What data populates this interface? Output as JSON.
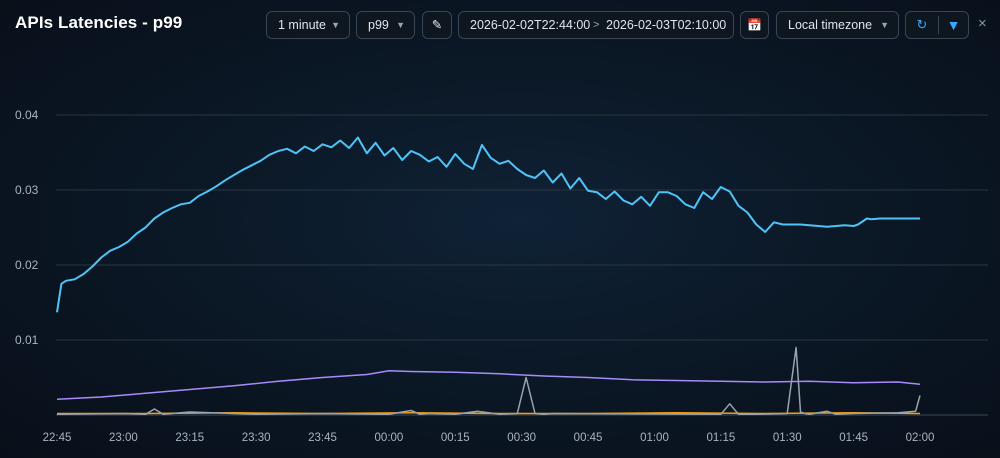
{
  "panel": {
    "title": "APIs Latencies - p99"
  },
  "toolbar": {
    "interval": {
      "value": "1 minute",
      "caret": "▼"
    },
    "stat": {
      "value": "p99",
      "caret": "▼"
    },
    "edit_icon_glyph": "✎",
    "range": {
      "from": "2026-02-02T22:44:00",
      "separator": ">",
      "to": "2026-02-03T02:10:00"
    },
    "calendar_icon_glyph": "📅",
    "timezone": {
      "value": "Local timezone",
      "caret": "▼"
    },
    "refresh_icon_glyph": "↻",
    "filter_icon_glyph": "▼",
    "close_glyph": "×"
  },
  "colors": {
    "background": "#0b1826",
    "grid": "#2a3542",
    "series_blue": "#4fc3f7",
    "series_purple": "#a78bfa",
    "series_grey": "#9aa3ad",
    "series_orange": "#f59e0b",
    "accent": "#3aa8ff"
  },
  "chart_data": {
    "type": "line",
    "title": "APIs Latencies - p99",
    "xlabel": "",
    "ylabel": "",
    "ylim": [
      0,
      0.045
    ],
    "yticks": [
      "0.04",
      "0.03",
      "0.02",
      "0.01"
    ],
    "ytick_values": [
      0.04,
      0.03,
      0.02,
      0.01
    ],
    "xticks": [
      "22:45",
      "23:00",
      "23:15",
      "23:30",
      "23:45",
      "00:00",
      "00:15",
      "00:30",
      "00:45",
      "01:00",
      "01:15",
      "01:30",
      "01:45",
      "02:00"
    ],
    "xtick_minutes": [
      0,
      15,
      30,
      45,
      60,
      75,
      90,
      105,
      120,
      135,
      150,
      165,
      180,
      195
    ],
    "grid": true,
    "legend": "none",
    "series": [
      {
        "color": "#4fc3f7",
        "x": [
          0,
          1,
          2,
          4,
          6,
          8,
          10,
          12,
          14,
          16,
          18,
          20,
          22,
          24,
          26,
          28,
          30,
          32,
          34,
          36,
          38,
          40,
          42,
          44,
          46,
          48,
          50,
          52,
          54,
          56,
          58,
          60,
          62,
          64,
          66,
          68,
          70,
          72,
          74,
          76,
          78,
          80,
          82,
          84,
          86,
          88,
          90,
          92,
          94,
          96,
          98,
          100,
          102,
          104,
          106,
          108,
          110,
          112,
          114,
          116,
          118,
          120,
          122,
          124,
          126,
          128,
          130,
          132,
          134,
          136,
          138,
          140,
          142,
          144,
          146,
          148,
          150,
          152,
          154,
          156,
          158,
          160,
          162,
          164,
          166,
          168,
          170,
          172,
          174,
          176,
          178,
          180,
          181,
          182,
          183,
          184,
          186,
          188,
          190,
          192,
          194,
          195
        ],
        "values": [
          0.0137,
          0.0175,
          0.0179,
          0.0181,
          0.0188,
          0.0198,
          0.021,
          0.0219,
          0.0224,
          0.0231,
          0.0242,
          0.025,
          0.0262,
          0.027,
          0.0276,
          0.0281,
          0.0283,
          0.0292,
          0.0298,
          0.0305,
          0.0313,
          0.032,
          0.0327,
          0.0333,
          0.0339,
          0.0347,
          0.0352,
          0.0355,
          0.0349,
          0.0358,
          0.0352,
          0.0361,
          0.0357,
          0.0366,
          0.0356,
          0.037,
          0.0349,
          0.0363,
          0.0346,
          0.0356,
          0.034,
          0.0352,
          0.0347,
          0.0338,
          0.0344,
          0.0331,
          0.0348,
          0.0335,
          0.0328,
          0.036,
          0.0343,
          0.0335,
          0.0339,
          0.0328,
          0.032,
          0.0316,
          0.0326,
          0.031,
          0.0322,
          0.0302,
          0.0316,
          0.0299,
          0.0297,
          0.0288,
          0.0298,
          0.0286,
          0.0281,
          0.0291,
          0.0279,
          0.0297,
          0.0297,
          0.0292,
          0.0281,
          0.0276,
          0.0297,
          0.0288,
          0.0304,
          0.0298,
          0.0279,
          0.027,
          0.0254,
          0.0244,
          0.0257,
          0.0254,
          0.0254,
          0.0254,
          0.0253,
          0.0252,
          0.0251,
          0.0252,
          0.0253,
          0.0252,
          0.0254,
          0.0258,
          0.0262,
          0.0261,
          0.0262,
          0.0262,
          0.0262,
          0.0262,
          0.0262,
          0.0262
        ],
        "note_end": 0.0262
      },
      {
        "color": "#a78bfa",
        "x": [
          0,
          10,
          20,
          30,
          40,
          50,
          60,
          70,
          75,
          80,
          90,
          100,
          110,
          120,
          130,
          140,
          150,
          160,
          170,
          180,
          190,
          195
        ],
        "values": [
          0.0021,
          0.0024,
          0.0029,
          0.0034,
          0.0039,
          0.0045,
          0.005,
          0.0054,
          0.0059,
          0.0058,
          0.0057,
          0.0055,
          0.0052,
          0.005,
          0.0047,
          0.0046,
          0.0045,
          0.0044,
          0.0045,
          0.0043,
          0.0044,
          0.0041
        ]
      },
      {
        "color": "#9aa3ad",
        "x": [
          0,
          15,
          20,
          22,
          24,
          30,
          45,
          60,
          75,
          80,
          82,
          84,
          90,
          95,
          100,
          104,
          106,
          108,
          110,
          112,
          150,
          152,
          154,
          156,
          158,
          165,
          167,
          168,
          169,
          170,
          172,
          174,
          176,
          180,
          190,
          194,
          195
        ],
        "values": [
          0.0001,
          0.0002,
          0.0001,
          0.0008,
          0.0001,
          0.0004,
          0.0001,
          0.0002,
          0.0001,
          0.0006,
          0.0001,
          0.0002,
          0.0001,
          0.0005,
          0.0001,
          0.0002,
          0.005,
          0.0002,
          0.0001,
          0.0002,
          0.0001,
          0.0015,
          0.0001,
          0.0001,
          0.0001,
          0.0002,
          0.009,
          0.0004,
          0.0002,
          0.0001,
          0.0003,
          0.0005,
          0.0001,
          0.0002,
          0.0003,
          0.0005,
          0.0026
        ]
      },
      {
        "color": "#f59e0b",
        "x": [
          0,
          20,
          40,
          60,
          80,
          100,
          120,
          140,
          160,
          180,
          195
        ],
        "values": [
          0.0002,
          0.0002,
          0.0003,
          0.0002,
          0.0003,
          0.0002,
          0.0002,
          0.0003,
          0.0002,
          0.0003,
          0.0002
        ]
      }
    ]
  }
}
